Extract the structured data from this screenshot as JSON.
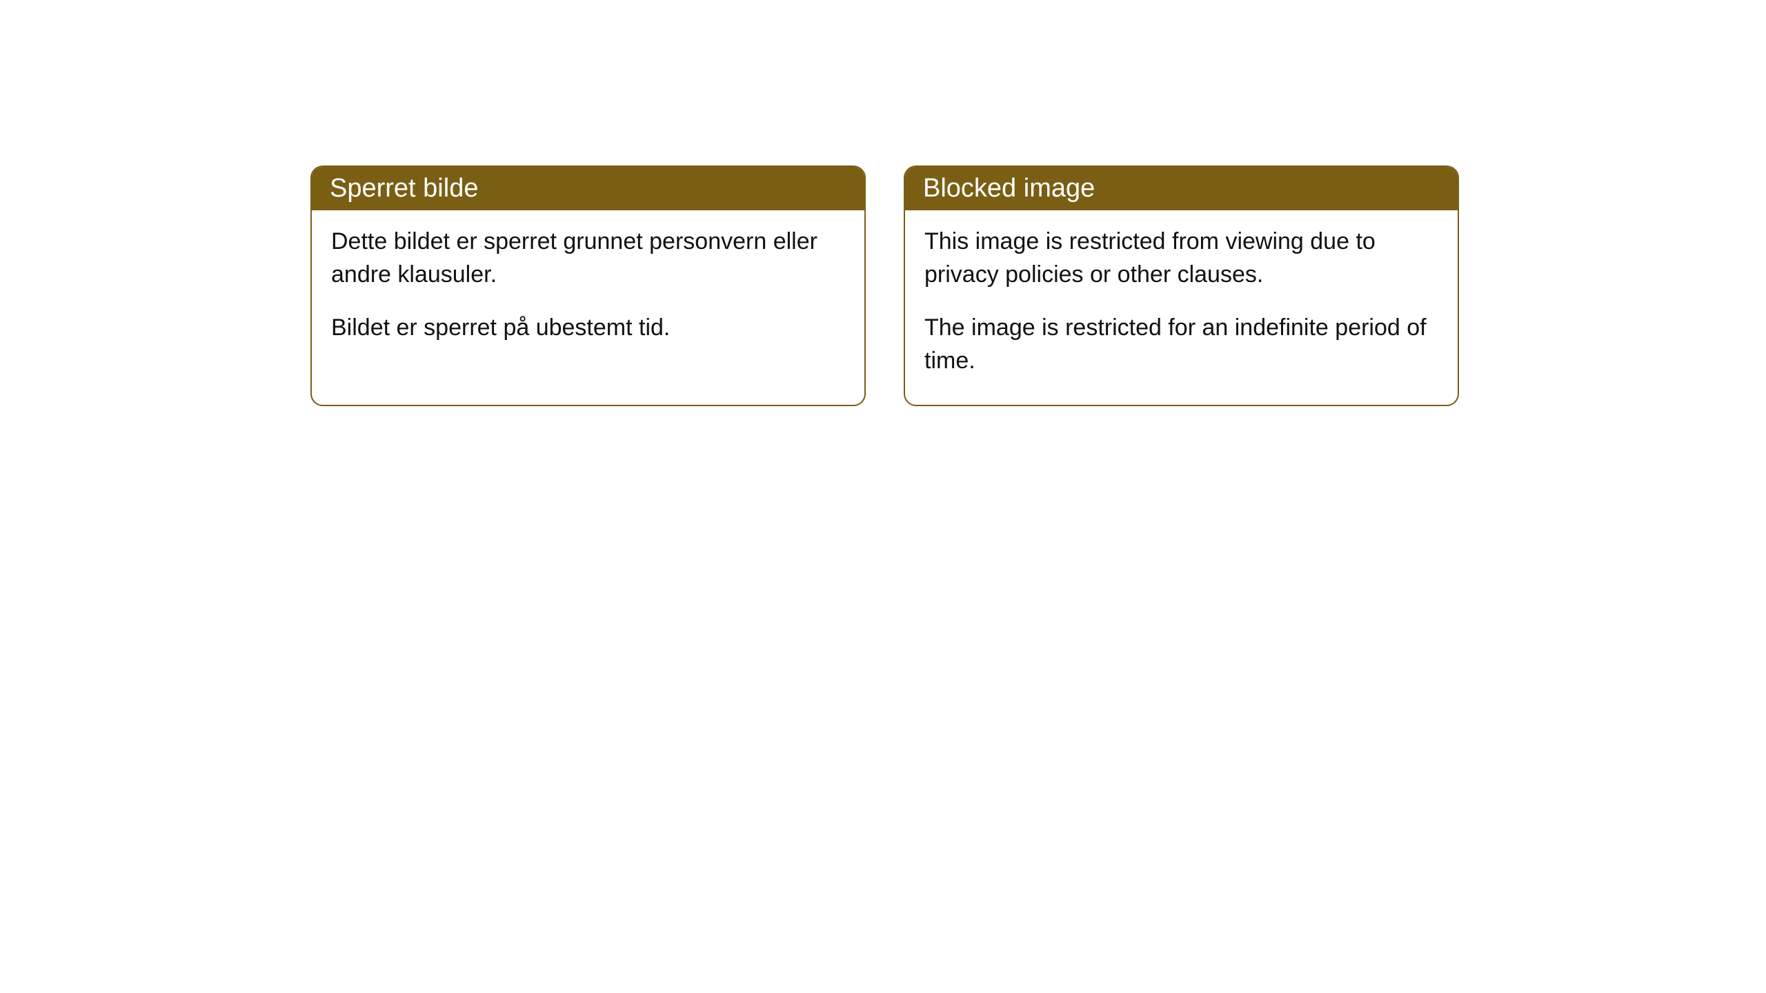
{
  "cards": [
    {
      "title": "Sperret bilde",
      "paragraph1": "Dette bildet er sperret grunnet personvern eller andre klausuler.",
      "paragraph2": "Bildet er sperret på ubestemt tid."
    },
    {
      "title": "Blocked image",
      "paragraph1": "This image is restricted from viewing due to privacy policies or other clauses.",
      "paragraph2": "The image is restricted for an indefinite period of time."
    }
  ],
  "styling": {
    "header_background": "#7a5e14",
    "header_text_color": "#ffffff",
    "border_color": "#7a5e14",
    "card_background": "#ffffff",
    "body_text_color": "#111111",
    "border_radius": 18,
    "header_fontsize": 38,
    "body_fontsize": 34
  }
}
